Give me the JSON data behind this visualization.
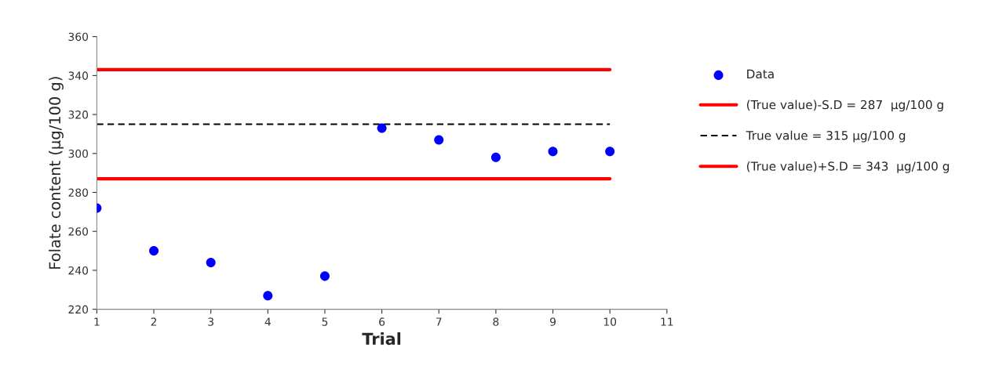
{
  "chart_data": {
    "type": "scatter",
    "xlabel": "Trial",
    "ylabel": "Folate content (μg/100 g)",
    "xlim": [
      1,
      11
    ],
    "xticks": [
      1,
      2,
      3,
      4,
      5,
      6,
      7,
      8,
      9,
      10,
      11
    ],
    "ylim": [
      220,
      360
    ],
    "yticks": [
      220,
      240,
      260,
      280,
      300,
      320,
      340,
      360
    ],
    "grid": false,
    "legend": "right",
    "series": [
      {
        "name": "Data",
        "marker": "circle",
        "color": "#0000ff",
        "x": [
          1,
          2,
          3,
          4,
          5,
          6,
          7,
          8,
          9,
          10
        ],
        "values": [
          272,
          250,
          244,
          227,
          237,
          313,
          307,
          298,
          301,
          301
        ]
      },
      {
        "name": "(True value)-S.D = 287  μg/100 g",
        "type": "line",
        "line_style": "solid",
        "color": "#ff0000",
        "x": [
          1,
          10
        ],
        "values": [
          287,
          287
        ]
      },
      {
        "name": "True value = 315 μg/100 g",
        "type": "line",
        "line_style": "dashed",
        "color": "#000000",
        "x": [
          1,
          10
        ],
        "values": [
          315,
          315
        ]
      },
      {
        "name": "(True value)+S.D = 343  μg/100 g",
        "type": "line",
        "line_style": "solid",
        "color": "#ff0000",
        "x": [
          1,
          10
        ],
        "values": [
          343,
          343
        ]
      }
    ]
  }
}
